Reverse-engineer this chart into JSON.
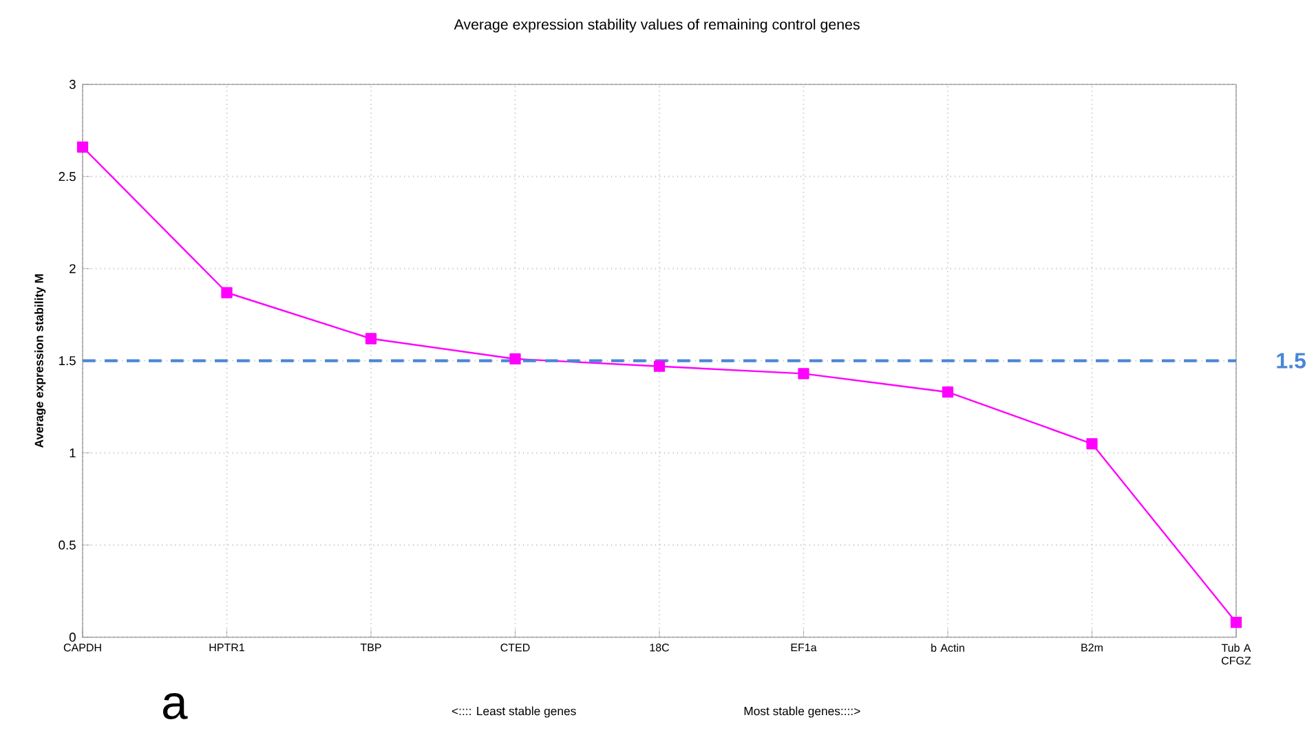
{
  "chart_data": {
    "type": "line",
    "title": "Average expression stability values of remaining control genes",
    "ylabel": "Average expression stability M",
    "categories": [
      "CAPDH",
      "HPTR1",
      "TBP",
      "CTED",
      "18C",
      "EF1a",
      "b Actin",
      "B2m",
      "Tub A CFGZ"
    ],
    "series": [
      {
        "color": "#ff00ff",
        "values": [
          2.66,
          1.87,
          1.62,
          1.51,
          1.47,
          1.43,
          1.33,
          1.05,
          0.08
        ]
      }
    ],
    "ylim": [
      0,
      3
    ],
    "yticks": [
      0,
      0.5,
      1,
      1.5,
      2,
      2.5,
      3
    ],
    "grid": true,
    "marker": "square",
    "line_style": "solid",
    "ref_lines": [
      {
        "axis": "y",
        "value": 1.5,
        "label": "1.5",
        "color": "#4a86d6",
        "line_style": "dashed"
      }
    ],
    "annotations": [
      "a",
      "<:::: Least stable genes",
      "Most stable genes::::>"
    ]
  }
}
